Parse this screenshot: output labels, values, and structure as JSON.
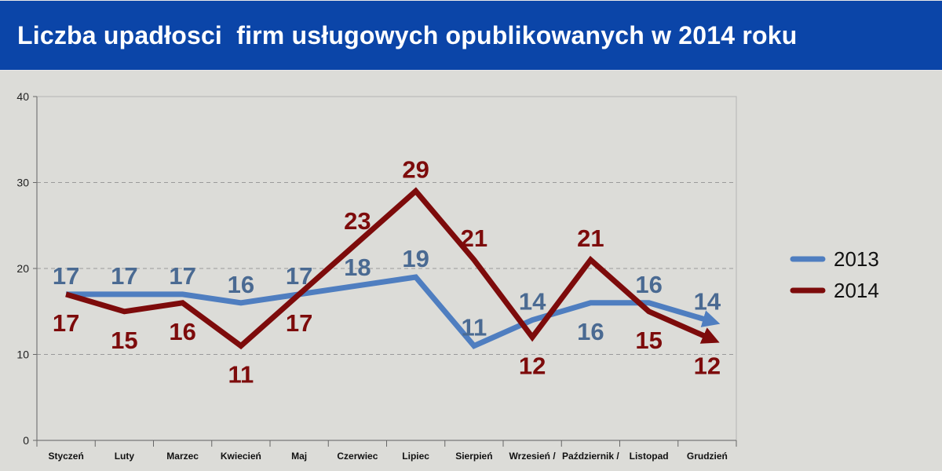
{
  "chart_data": {
    "type": "line",
    "title": "Liczba upadłosci  firm usługowych opublikowanych w 2014 roku",
    "categories": [
      "Styczeń",
      "Luty",
      "Marzec",
      "Kwiecień",
      "Maj",
      "Czerwiec",
      "Lipiec",
      "Sierpień",
      "Wrzesień /",
      "Październik /",
      "Listopad",
      "Grudzień"
    ],
    "series": [
      {
        "name": "2013",
        "color": "#4f7ec0",
        "label_color": "#4a6a92",
        "values": [
          17,
          17,
          17,
          16,
          17,
          18,
          19,
          11,
          14,
          16,
          16,
          14
        ]
      },
      {
        "name": "2014",
        "color": "#7d0b0b",
        "label_color": "#7d0b0b",
        "values": [
          17,
          15,
          16,
          11,
          17,
          23,
          29,
          21,
          12,
          21,
          15,
          12
        ]
      }
    ],
    "ylim": [
      0,
      40
    ],
    "yticks": [
      0,
      10,
      20,
      30,
      40
    ],
    "grid": true,
    "legend": "right"
  }
}
